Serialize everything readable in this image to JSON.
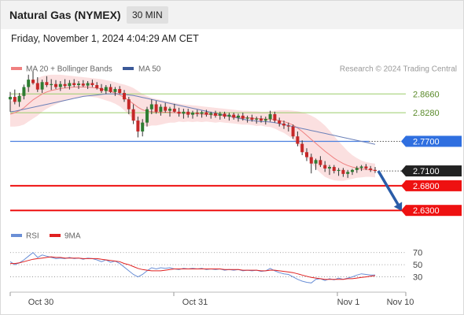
{
  "header": {
    "symbol": "Natural Gas (NYMEX)",
    "timeframe": "30 MIN",
    "datetime": "Friday, November 1, 2024 4:04:29 AM CET"
  },
  "legend": {
    "ma20_label": "MA 20 + Bollinger Bands",
    "ma50_label": "MA 50",
    "credit": "Research © 2024 Trading Central",
    "rsi_label": "RSI",
    "rsi_ma_label": "9MA"
  },
  "colors": {
    "bollinger_fill": "#fbe0e0",
    "ma20": "#f08080",
    "ma50": "#6b80b8",
    "candle_up": "#2e7d32",
    "candle_down": "#c62828",
    "resistance_green": "#9acd6a",
    "pivot_blue": "#4a7fe0",
    "support_red": "#ee1111",
    "arrow": "#2a5ca8",
    "rsi": "#6a8fd6",
    "rsi_ma": "#e02020"
  },
  "chart_data": [
    {
      "type": "candlestick",
      "x_tick_labels": [
        "Oct 30",
        "Oct 31",
        "Nov 1",
        "Nov 10"
      ],
      "ylim": [
        2.6,
        2.9
      ],
      "levels": [
        {
          "value": 2.866,
          "label": "2.8660",
          "kind": "resistance"
        },
        {
          "value": 2.828,
          "label": "2.8280",
          "kind": "resistance"
        },
        {
          "value": 2.77,
          "label": "2.7700",
          "kind": "pivot"
        },
        {
          "value": 2.71,
          "label": "2.7100",
          "kind": "last"
        },
        {
          "value": 2.68,
          "label": "2.6800",
          "kind": "support"
        },
        {
          "value": 2.63,
          "label": "2.6300",
          "kind": "support"
        }
      ],
      "ohlc": [
        [
          2.855,
          2.87,
          2.83,
          2.86
        ],
        [
          2.86,
          2.875,
          2.845,
          2.85
        ],
        [
          2.85,
          2.868,
          2.84,
          2.862
        ],
        [
          2.862,
          2.885,
          2.855,
          2.88
        ],
        [
          2.88,
          2.905,
          2.87,
          2.895
        ],
        [
          2.895,
          2.912,
          2.885,
          2.888
        ],
        [
          2.888,
          2.9,
          2.87,
          2.875
        ],
        [
          2.875,
          2.895,
          2.868,
          2.89
        ],
        [
          2.89,
          2.902,
          2.88,
          2.884
        ],
        [
          2.884,
          2.896,
          2.874,
          2.886
        ],
        [
          2.886,
          2.894,
          2.876,
          2.88
        ],
        [
          2.88,
          2.892,
          2.872,
          2.886
        ],
        [
          2.886,
          2.896,
          2.878,
          2.882
        ],
        [
          2.882,
          2.894,
          2.875,
          2.888
        ],
        [
          2.888,
          2.896,
          2.88,
          2.884
        ],
        [
          2.884,
          2.892,
          2.876,
          2.887
        ],
        [
          2.887,
          2.894,
          2.88,
          2.883
        ],
        [
          2.883,
          2.892,
          2.876,
          2.888
        ],
        [
          2.888,
          2.895,
          2.88,
          2.884
        ],
        [
          2.884,
          2.89,
          2.875,
          2.878
        ],
        [
          2.878,
          2.886,
          2.868,
          2.872
        ],
        [
          2.872,
          2.884,
          2.866,
          2.88
        ],
        [
          2.88,
          2.886,
          2.868,
          2.87
        ],
        [
          2.87,
          2.88,
          2.862,
          2.876
        ],
        [
          2.876,
          2.882,
          2.866,
          2.868
        ],
        [
          2.868,
          2.874,
          2.85,
          2.855
        ],
        [
          2.855,
          2.86,
          2.825,
          2.835
        ],
        [
          2.835,
          2.845,
          2.805,
          2.812
        ],
        [
          2.812,
          2.82,
          2.778,
          2.79
        ],
        [
          2.79,
          2.815,
          2.78,
          2.808
        ],
        [
          2.808,
          2.84,
          2.8,
          2.835
        ],
        [
          2.835,
          2.855,
          2.825,
          2.845
        ],
        [
          2.845,
          2.852,
          2.826,
          2.83
        ],
        [
          2.83,
          2.845,
          2.822,
          2.84
        ],
        [
          2.84,
          2.848,
          2.828,
          2.832
        ],
        [
          2.832,
          2.84,
          2.82,
          2.836
        ],
        [
          2.836,
          2.846,
          2.828,
          2.83
        ],
        [
          2.83,
          2.838,
          2.82,
          2.826
        ],
        [
          2.826,
          2.836,
          2.816,
          2.83
        ],
        [
          2.83,
          2.836,
          2.818,
          2.824
        ],
        [
          2.824,
          2.832,
          2.816,
          2.828
        ],
        [
          2.828,
          2.834,
          2.82,
          2.826
        ],
        [
          2.826,
          2.832,
          2.818,
          2.829
        ],
        [
          2.829,
          2.834,
          2.82,
          2.824
        ],
        [
          2.824,
          2.83,
          2.816,
          2.827
        ],
        [
          2.827,
          2.832,
          2.818,
          2.822
        ],
        [
          2.822,
          2.83,
          2.814,
          2.826
        ],
        [
          2.826,
          2.83,
          2.816,
          2.82
        ],
        [
          2.82,
          2.828,
          2.812,
          2.824
        ],
        [
          2.824,
          2.828,
          2.814,
          2.818
        ],
        [
          2.818,
          2.826,
          2.81,
          2.822
        ],
        [
          2.822,
          2.828,
          2.812,
          2.816
        ],
        [
          2.816,
          2.822,
          2.808,
          2.818
        ],
        [
          2.818,
          2.824,
          2.81,
          2.814
        ],
        [
          2.814,
          2.82,
          2.806,
          2.816
        ],
        [
          2.816,
          2.822,
          2.808,
          2.812
        ],
        [
          2.812,
          2.82,
          2.804,
          2.815
        ],
        [
          2.815,
          2.832,
          2.81,
          2.825
        ],
        [
          2.825,
          2.83,
          2.808,
          2.812
        ],
        [
          2.812,
          2.818,
          2.8,
          2.806
        ],
        [
          2.806,
          2.812,
          2.795,
          2.802
        ],
        [
          2.802,
          2.808,
          2.79,
          2.8
        ],
        [
          2.8,
          2.804,
          2.775,
          2.78
        ],
        [
          2.78,
          2.79,
          2.76,
          2.765
        ],
        [
          2.765,
          2.772,
          2.742,
          2.748
        ],
        [
          2.748,
          2.756,
          2.73,
          2.738
        ],
        [
          2.738,
          2.745,
          2.705,
          2.725
        ],
        [
          2.725,
          2.735,
          2.712,
          2.732
        ],
        [
          2.732,
          2.74,
          2.718,
          2.722
        ],
        [
          2.722,
          2.73,
          2.708,
          2.715
        ],
        [
          2.715,
          2.722,
          2.702,
          2.718
        ],
        [
          2.718,
          2.722,
          2.705,
          2.71
        ],
        [
          2.71,
          2.716,
          2.7,
          2.712
        ],
        [
          2.712,
          2.716,
          2.698,
          2.704
        ],
        [
          2.704,
          2.712,
          2.696,
          2.708
        ],
        [
          2.708,
          2.714,
          2.702,
          2.712
        ],
        [
          2.712,
          2.72,
          2.706,
          2.716
        ],
        [
          2.716,
          2.722,
          2.71,
          2.719
        ],
        [
          2.719,
          2.724,
          2.712,
          2.715
        ],
        [
          2.715,
          2.72,
          2.708,
          2.712
        ],
        [
          2.712,
          2.718,
          2.706,
          2.71
        ]
      ],
      "ma20": [
        2.825,
        2.828,
        2.832,
        2.838,
        2.846,
        2.854,
        2.86,
        2.866,
        2.87,
        2.873,
        2.875,
        2.877,
        2.878,
        2.879,
        2.88,
        2.88,
        2.88,
        2.88,
        2.879,
        2.878,
        2.876,
        2.874,
        2.871,
        2.868,
        2.864,
        2.859,
        2.853,
        2.846,
        2.839,
        2.834,
        2.831,
        2.83,
        2.829,
        2.829,
        2.829,
        2.829,
        2.828,
        2.828,
        2.827,
        2.827,
        2.826,
        2.826,
        2.825,
        2.825,
        2.824,
        2.823,
        2.823,
        2.822,
        2.821,
        2.82,
        2.819,
        2.818,
        2.818,
        2.817,
        2.816,
        2.816,
        2.815,
        2.815,
        2.814,
        2.812,
        2.81,
        2.807,
        2.803,
        2.797,
        2.79,
        2.782,
        2.774,
        2.766,
        2.758,
        2.75,
        2.743,
        2.736,
        2.73,
        2.725,
        2.721,
        2.718,
        2.716,
        2.714,
        2.713,
        2.712,
        2.711
      ],
      "bb_upper": [
        2.85,
        2.856,
        2.863,
        2.872,
        2.882,
        2.892,
        2.898,
        2.902,
        2.904,
        2.905,
        2.905,
        2.905,
        2.904,
        2.903,
        2.902,
        2.901,
        2.9,
        2.899,
        2.898,
        2.897,
        2.896,
        2.894,
        2.892,
        2.89,
        2.887,
        2.885,
        2.882,
        2.878,
        2.872,
        2.866,
        2.862,
        2.858,
        2.856,
        2.854,
        2.852,
        2.85,
        2.848,
        2.846,
        2.845,
        2.844,
        2.843,
        2.842,
        2.841,
        2.84,
        2.839,
        2.838,
        2.837,
        2.836,
        2.835,
        2.834,
        2.833,
        2.832,
        2.832,
        2.831,
        2.831,
        2.83,
        2.83,
        2.831,
        2.832,
        2.833,
        2.833,
        2.833,
        2.832,
        2.831,
        2.829,
        2.826,
        2.822,
        2.817,
        2.81,
        2.802,
        2.792,
        2.781,
        2.77,
        2.76,
        2.75,
        2.742,
        2.736,
        2.731,
        2.728,
        2.726,
        2.725
      ],
      "bb_lower": [
        2.8,
        2.8,
        2.801,
        2.804,
        2.81,
        2.816,
        2.822,
        2.83,
        2.836,
        2.841,
        2.845,
        2.849,
        2.852,
        2.855,
        2.858,
        2.859,
        2.86,
        2.861,
        2.86,
        2.859,
        2.856,
        2.853,
        2.85,
        2.846,
        2.841,
        2.833,
        2.824,
        2.814,
        2.806,
        2.802,
        2.8,
        2.802,
        2.802,
        2.804,
        2.806,
        2.808,
        2.808,
        2.81,
        2.809,
        2.81,
        2.809,
        2.81,
        2.809,
        2.81,
        2.809,
        2.808,
        2.809,
        2.808,
        2.807,
        2.806,
        2.805,
        2.804,
        2.804,
        2.803,
        2.801,
        2.802,
        2.8,
        2.799,
        2.796,
        2.791,
        2.787,
        2.781,
        2.774,
        2.763,
        2.751,
        2.738,
        2.726,
        2.715,
        2.706,
        2.698,
        2.694,
        2.691,
        2.69,
        2.69,
        2.692,
        2.694,
        2.696,
        2.697,
        2.698,
        2.698,
        2.697
      ],
      "ma50": [
        2.83,
        2.831,
        2.833,
        2.835,
        2.837,
        2.839,
        2.841,
        2.843,
        2.845,
        2.847,
        2.849,
        2.851,
        2.853,
        2.855,
        2.857,
        2.859,
        2.861,
        2.862,
        2.863,
        2.864,
        2.865,
        2.866,
        2.866,
        2.866,
        2.866,
        2.865,
        2.864,
        2.863,
        2.861,
        2.859,
        2.857,
        2.855,
        2.853,
        2.851,
        2.849,
        2.847,
        2.845,
        2.843,
        2.841,
        2.839,
        2.837,
        2.835,
        2.833,
        2.831,
        2.829,
        2.827,
        2.825,
        2.823,
        2.821,
        2.819,
        2.817,
        2.815,
        2.813,
        2.812,
        2.811,
        2.81,
        2.81,
        2.809,
        2.808,
        2.806,
        2.804,
        2.802,
        2.8,
        2.798,
        2.796,
        2.794,
        2.792,
        2.79,
        2.788,
        2.786,
        2.784,
        2.782,
        2.78,
        2.778,
        2.776,
        2.774,
        2.772,
        2.77,
        2.768,
        2.766,
        2.764
      ],
      "forecast": {
        "from": 2.71,
        "to": 2.63
      }
    },
    {
      "type": "line",
      "name": "RSI",
      "yticks": [
        30,
        50,
        70
      ],
      "ylim": [
        10,
        80
      ],
      "rsi": [
        55,
        50,
        53,
        58,
        64,
        70,
        62,
        66,
        64,
        62,
        60,
        61,
        60,
        62,
        60,
        61,
        59,
        61,
        60,
        58,
        55,
        58,
        54,
        56,
        52,
        46,
        40,
        34,
        30,
        34,
        40,
        45,
        43,
        45,
        44,
        45,
        43,
        42,
        44,
        43,
        44,
        43,
        44,
        42,
        43,
        42,
        43,
        41,
        42,
        41,
        42,
        40,
        41,
        40,
        41,
        39,
        40,
        44,
        40,
        37,
        35,
        34,
        30,
        26,
        23,
        21,
        20,
        26,
        27,
        24,
        27,
        25,
        28,
        26,
        28,
        30,
        33,
        35,
        34,
        33,
        33
      ],
      "rsi_ma": [
        52,
        52,
        53,
        55,
        57,
        59,
        60,
        61,
        62,
        63,
        62,
        62,
        61,
        61,
        61,
        61,
        60,
        60,
        60,
        60,
        59,
        58,
        57,
        56,
        55,
        52,
        50,
        47,
        44,
        42,
        41,
        40,
        40,
        40,
        41,
        42,
        43,
        43,
        43,
        43,
        43,
        43,
        43,
        43,
        43,
        43,
        43,
        42,
        42,
        42,
        42,
        41,
        41,
        41,
        41,
        40,
        40,
        41,
        41,
        40,
        39,
        38,
        37,
        35,
        33,
        31,
        29,
        28,
        27,
        26,
        26,
        26,
        26,
        26,
        27,
        27,
        28,
        29,
        30,
        31,
        32
      ]
    }
  ]
}
